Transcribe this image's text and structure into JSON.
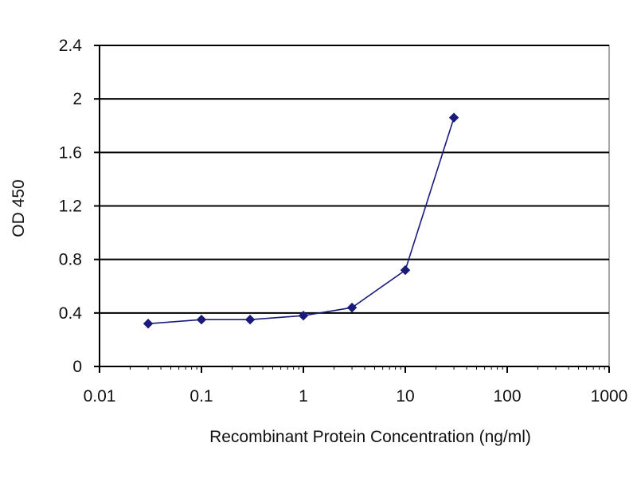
{
  "chart_data": {
    "type": "line",
    "title": "",
    "xlabel": "Recombinant Protein Concentration (ng/ml)",
    "ylabel": "OD 450",
    "x_scale": "log",
    "xlim": [
      0.01,
      1000
    ],
    "ylim": [
      0,
      2.4
    ],
    "x_ticks": [
      0.01,
      0.1,
      1,
      10,
      100,
      1000
    ],
    "x_tick_labels": [
      "0.01",
      "0.1",
      "1",
      "10",
      "100",
      "1000"
    ],
    "y_ticks": [
      0,
      0.4,
      0.8,
      1.2,
      1.6,
      2,
      2.4
    ],
    "y_tick_labels": [
      "0",
      "0.4",
      "0.8",
      "1.2",
      "1.6",
      "2",
      "2.4"
    ],
    "grid": "horizontal",
    "legend": "none",
    "series": [
      {
        "x": [
          0.03,
          0.1,
          0.3,
          1,
          3,
          10,
          30
        ],
        "y": [
          0.32,
          0.35,
          0.35,
          0.38,
          0.44,
          0.72,
          1.86
        ],
        "color": "#1a1a7a",
        "marker": "diamond"
      }
    ],
    "colors": {
      "line": "#1a1a7a",
      "gridline": "#000000",
      "axis": "#000000",
      "plot_border": "#888888"
    }
  }
}
